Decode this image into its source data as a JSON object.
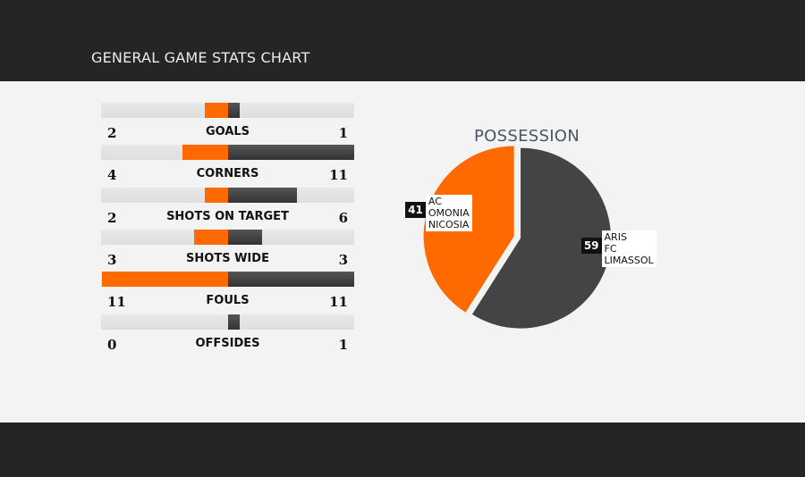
{
  "header": {
    "title": "GENERAL GAME STATS CHART"
  },
  "colors": {
    "home": "#ff6a00",
    "away": "#444444"
  },
  "chart_data": [
    {
      "type": "bar",
      "categories": [
        "GOALS",
        "CORNERS",
        "SHOTS ON TARGET",
        "SHOTS WIDE",
        "FOULS",
        "OFFSIDES"
      ],
      "series": [
        {
          "values": [
            2,
            4,
            2,
            3,
            11,
            0
          ]
        },
        {
          "values": [
            1,
            11,
            6,
            3,
            11,
            1
          ]
        }
      ],
      "home_values": [
        "2",
        "4",
        "2",
        "3",
        "11",
        "0"
      ],
      "away_values": [
        "1",
        "11",
        "6",
        "3",
        "11",
        "1"
      ]
    },
    {
      "type": "pie",
      "title": "POSSESSION",
      "slices": [
        {
          "label": "AC OMONIA NICOSIA",
          "label_lines": [
            "AC",
            "OMONIA",
            "NICOSIA"
          ],
          "value": 41,
          "value_text": "41",
          "color": "#ff6a00"
        },
        {
          "label": "ARIS FC LIMASSOL",
          "label_lines": [
            "ARIS",
            "FC",
            "LIMASSOL"
          ],
          "value": 59,
          "value_text": "59",
          "color": "#444444"
        }
      ]
    }
  ]
}
